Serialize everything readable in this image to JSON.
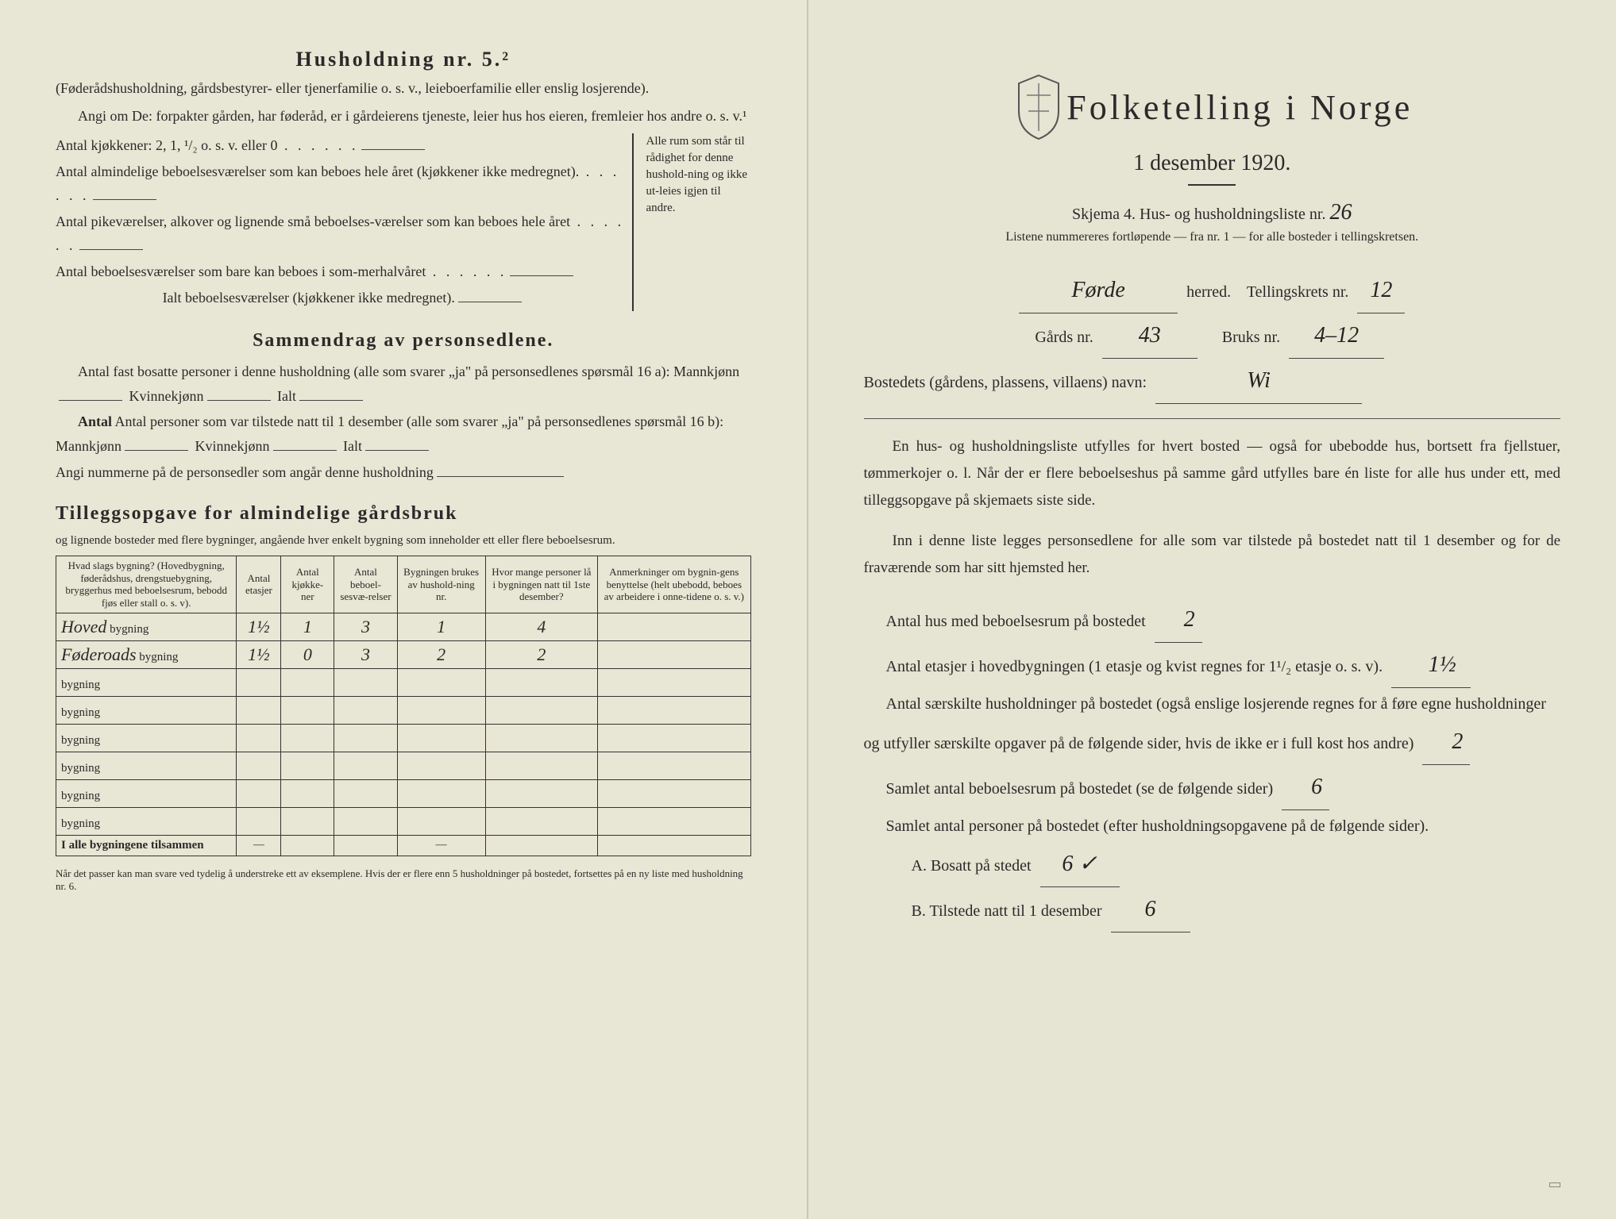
{
  "left": {
    "heading": "Husholdning nr. 5.²",
    "intro1": "(Føderådshusholdning, gårdsbestyrer- eller tjenerfamilie o. s. v., leieboerfamilie eller enslig losjerende).",
    "intro2": "Angi om De:  forpakter gården, har føderåd, er i gårdeierens tjeneste, leier hus hos eieren, fremleier hos andre o. s. v.¹",
    "lines": {
      "l1": "Antal kjøkkener: 2, 1, ¹/₂ o. s. v. eller 0",
      "l2": "Antal almindelige beboelsesværelser som kan beboes hele året (kjøkkener ikke medregnet).",
      "l3": "Antal pikeværelser, alkover og lignende små beboelses-værelser som kan beboes hele året",
      "l4": "Antal beboelsesværelser som bare kan beboes i som-merhalvåret",
      "l5": "Ialt beboelsesværelser  (kjøkkener ikke medregnet)."
    },
    "brace_note": "Alle rum som står til rådighet for denne hushold-ning og ikke ut-leies igjen til andre.",
    "sammendrag_head": "Sammendrag av personsedlene.",
    "s1a": "Antal fast bosatte personer i denne husholdning (alle som svarer „ja\" på personsedlenes spørsmål 16 a): Mannkjønn",
    "s1b": "Kvinnekjønn",
    "s1c": "Ialt",
    "s2a": "Antal personer som var tilstede natt til 1 desember (alle som svarer „ja\" på personsedlenes spørsmål 16 b): Mannkjønn",
    "s3": "Angi nummerne på de personsedler som angår denne husholdning",
    "tillegg_head": "Tilleggsopgave for almindelige gårdsbruk",
    "tillegg_sub": "og lignende bosteder med flere bygninger, angående hver enkelt bygning som inneholder ett eller flere beboelsesrum.",
    "table": {
      "headers": [
        "Hvad slags bygning?\n(Hovedbygning, føderådshus, drengstuebygning, bryggerhus med beboelsesrum, bebodd fjøs eller stall o. s. v).",
        "Antal etasjer",
        "Antal kjøkke-ner",
        "Antal beboel-sesvæ-relser",
        "Bygningen brukes av hushold-ning nr.",
        "Hvor mange personer lå i bygningen natt til 1ste desember?",
        "Anmerkninger om bygnin-gens benyttelse (helt ubebodd, beboes av arbeidere i onne-tidene o. s. v.)"
      ],
      "rows": [
        {
          "label": "Hoved",
          "suffix": "bygning",
          "etasjer": "1½",
          "kjokken": "1",
          "beboelse": "3",
          "hushold": "1",
          "personer": "4",
          "anm": ""
        },
        {
          "label": "Føderoads",
          "suffix": "bygning",
          "etasjer": "1½",
          "kjokken": "0",
          "beboelse": "3",
          "hushold": "2",
          "personer": "2",
          "anm": ""
        },
        {
          "label": "",
          "suffix": "bygning",
          "etasjer": "",
          "kjokken": "",
          "beboelse": "",
          "hushold": "",
          "personer": "",
          "anm": ""
        },
        {
          "label": "",
          "suffix": "bygning",
          "etasjer": "",
          "kjokken": "",
          "beboelse": "",
          "hushold": "",
          "personer": "",
          "anm": ""
        },
        {
          "label": "",
          "suffix": "bygning",
          "etasjer": "",
          "kjokken": "",
          "beboelse": "",
          "hushold": "",
          "personer": "",
          "anm": ""
        },
        {
          "label": "",
          "suffix": "bygning",
          "etasjer": "",
          "kjokken": "",
          "beboelse": "",
          "hushold": "",
          "personer": "",
          "anm": ""
        },
        {
          "label": "",
          "suffix": "bygning",
          "etasjer": "",
          "kjokken": "",
          "beboelse": "",
          "hushold": "",
          "personer": "",
          "anm": ""
        },
        {
          "label": "",
          "suffix": "bygning",
          "etasjer": "",
          "kjokken": "",
          "beboelse": "",
          "hushold": "",
          "personer": "",
          "anm": ""
        }
      ],
      "total_label": "I alle bygningene tilsammen",
      "dash": "—"
    },
    "footnote": "Når det passer kan man svare ved tydelig å understreke ett av eksemplene.\nHvis der er flere enn 5 husholdninger på bostedet, fortsettes på en ny liste med husholdning nr. 6."
  },
  "right": {
    "title": "Folketelling i Norge",
    "date": "1 desember 1920.",
    "skjema": "Skjema 4.  Hus- og husholdningsliste nr.",
    "skjema_nr": "26",
    "sublisting": "Listene nummereres fortløpende — fra nr. 1 — for alle bosteder i tellingskretsen.",
    "herred_val": "Førde",
    "herred_label": "herred.",
    "tellingskrets_label": "Tellingskrets nr.",
    "tellingskrets_val": "12",
    "gards_label": "Gårds nr.",
    "gards_val": "43",
    "bruks_label": "Bruks nr.",
    "bruks_val": "4–12",
    "bosted_label": "Bostedets (gårdens, plassens, villaens) navn:",
    "bosted_val": "Wi",
    "para1": "En hus- og husholdningsliste utfylles for hvert bosted — også for ubebodde hus, bortsett fra fjellstuer, tømmerkojer o. l.  Når der er flere beboelseshus på samme gård utfylles bare én liste for alle hus under ett, med tilleggsopgave på skjemaets siste side.",
    "para2": "Inn i denne liste legges personsedlene for alle som var tilstede på bostedet natt til 1 desember og for de fraværende som har sitt hjemsted her.",
    "q1": "Antal hus med beboelsesrum på bostedet",
    "q1_val": "2",
    "q2a": "Antal etasjer i hovedbygningen (1 etasje og kvist regnes for 1¹/₂ etasje o. s. v).",
    "q2_val": "1½",
    "q3": "Antal særskilte husholdninger på bostedet (også enslige losjerende regnes for å føre egne husholdninger og utfyller særskilte opgaver på de følgende sider, hvis de ikke er i full kost hos andre)",
    "q3_val": "2",
    "q4": "Samlet antal beboelsesrum på bostedet (se de følgende sider)",
    "q4_val": "6",
    "q5": "Samlet antal personer på bostedet (efter husholdningsopgavene på de følgende sider).",
    "qA": "A.  Bosatt på stedet",
    "qA_val": "6 ✓",
    "qB": "B.  Tilstede natt til 1 desember",
    "qB_val": "6",
    "footer_stamp": ""
  },
  "colors": {
    "paper": "#e8e6d4",
    "ink": "#2a2a2a",
    "border": "#333333"
  }
}
